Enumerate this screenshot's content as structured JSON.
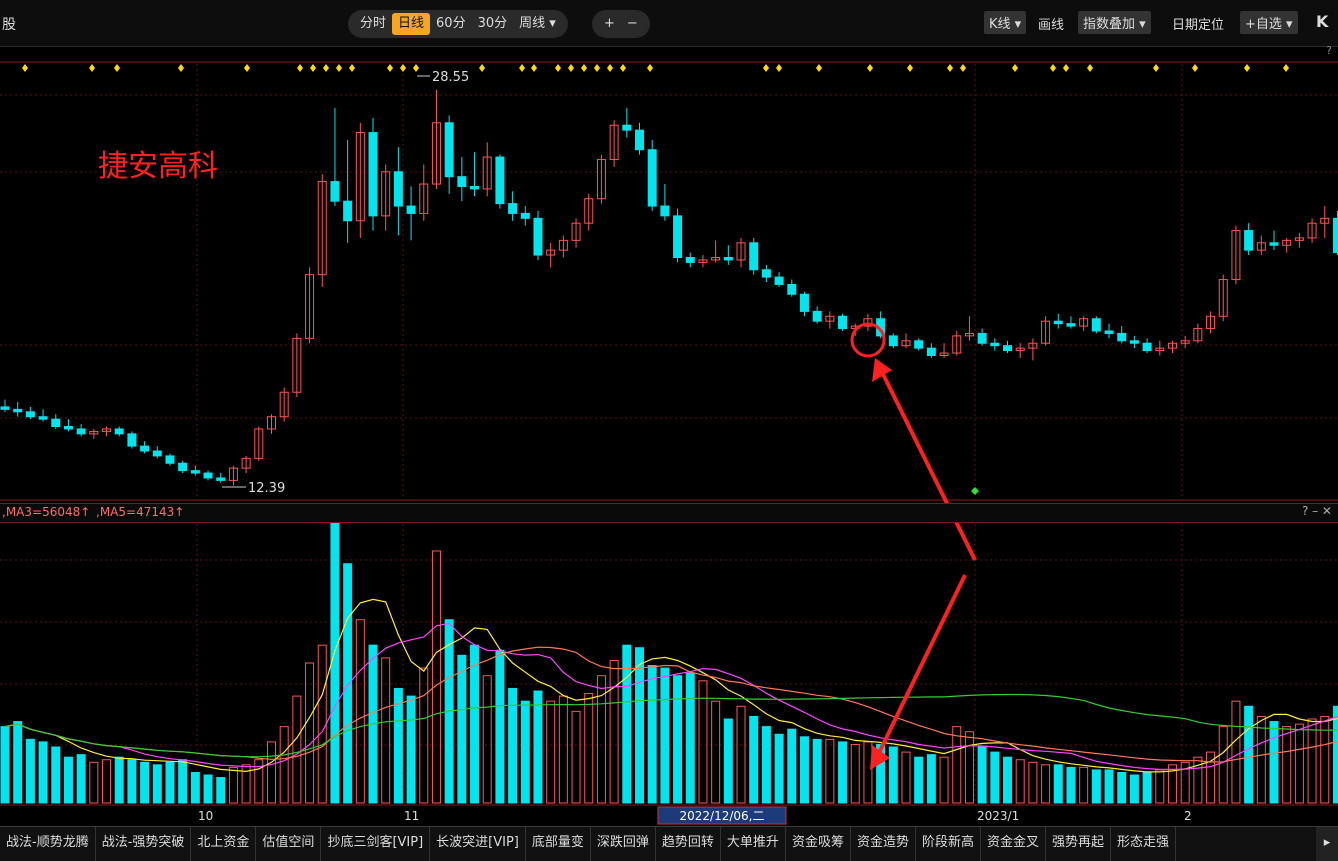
{
  "toolbar": {
    "left_fragment": "股",
    "periods": [
      "分时",
      "日线",
      "60分",
      "30分",
      "周线 ▾"
    ],
    "active_period": "日线",
    "zoom_in": "+",
    "zoom_out": "−",
    "right_items": [
      "K线 ▾",
      "画线",
      "指数叠加 ▾",
      "日期定位",
      "+自选 ▾",
      "K"
    ]
  },
  "help_mark": "?",
  "stock_name": "捷安高科",
  "price_high_label": "28.55",
  "price_low_label": "12.39",
  "volume_header": {
    "ma3": ",MA3=56048↑",
    "ma5": ",MA5=47143↑",
    "controls": "? – ✕"
  },
  "x_ticks": [
    "10",
    "11",
    "2023/1",
    "2"
  ],
  "date_cursor": "2022/12/06,二",
  "bottom_tabs": [
    "战法-顺势龙腾",
    "战法-强势突破",
    "北上资金",
    "估值空间",
    "抄底三剑客[VIP]",
    "长波突进[VIP]",
    "底部量变",
    "深跌回弹",
    "趋势回转",
    "大单推升",
    "资金吸筹",
    "资金造势",
    "阶段新高",
    "资金金叉",
    "强势再起",
    "形态走强"
  ],
  "bottom_arrow": "▸",
  "colors": {
    "up": "#ff5555",
    "down": "#00e5ee",
    "ma_yellow": "#ffee33",
    "ma_magenta": "#ff44ff",
    "ma_red": "#ff7755",
    "ma_green": "#33cc33",
    "annotation": "#ff2020",
    "signal": "#ffdd00"
  },
  "chart_data": {
    "type": "candlestick",
    "title": "捷安高科",
    "price_range_visible": [
      12.39,
      28.55
    ],
    "candles": [
      [
        15.6,
        15.9,
        15.4,
        15.5
      ],
      [
        15.5,
        15.8,
        15.2,
        15.4
      ],
      [
        15.4,
        15.6,
        15.1,
        15.2
      ],
      [
        15.2,
        15.5,
        15.0,
        15.1
      ],
      [
        15.1,
        15.3,
        14.7,
        14.8
      ],
      [
        14.8,
        15.1,
        14.6,
        14.7
      ],
      [
        14.7,
        14.9,
        14.4,
        14.5
      ],
      [
        14.5,
        14.7,
        14.3,
        14.6
      ],
      [
        14.6,
        14.8,
        14.4,
        14.7
      ],
      [
        14.7,
        14.8,
        14.4,
        14.5
      ],
      [
        14.5,
        14.6,
        13.9,
        14.0
      ],
      [
        14.0,
        14.2,
        13.7,
        13.8
      ],
      [
        13.8,
        14.0,
        13.5,
        13.6
      ],
      [
        13.6,
        13.7,
        13.2,
        13.3
      ],
      [
        13.3,
        13.4,
        12.9,
        13.0
      ],
      [
        13.0,
        13.2,
        12.8,
        12.9
      ],
      [
        12.9,
        13.0,
        12.6,
        12.7
      ],
      [
        12.7,
        12.9,
        12.5,
        12.6
      ],
      [
        12.6,
        13.2,
        12.39,
        13.1
      ],
      [
        13.1,
        13.6,
        12.9,
        13.5
      ],
      [
        13.5,
        14.8,
        13.4,
        14.7
      ],
      [
        14.7,
        15.3,
        14.5,
        15.2
      ],
      [
        15.2,
        16.4,
        15.0,
        16.2
      ],
      [
        16.2,
        18.6,
        16.0,
        18.4
      ],
      [
        18.4,
        21.3,
        18.2,
        21.0
      ],
      [
        21.0,
        25.1,
        20.5,
        24.8
      ],
      [
        24.8,
        27.8,
        23.8,
        24.0
      ],
      [
        24.0,
        26.5,
        22.3,
        23.2
      ],
      [
        23.2,
        27.2,
        22.5,
        26.8
      ],
      [
        26.8,
        27.4,
        22.8,
        23.4
      ],
      [
        23.4,
        25.5,
        22.8,
        25.2
      ],
      [
        25.2,
        26.2,
        22.6,
        23.8
      ],
      [
        23.8,
        24.6,
        22.4,
        23.5
      ],
      [
        23.5,
        25.5,
        23.2,
        24.7
      ],
      [
        24.7,
        28.55,
        24.5,
        27.2
      ],
      [
        27.2,
        27.5,
        24.3,
        25.0
      ],
      [
        25.0,
        25.8,
        24.0,
        24.6
      ],
      [
        24.6,
        26.0,
        24.2,
        24.5
      ],
      [
        24.5,
        26.4,
        24.2,
        25.8
      ],
      [
        25.8,
        25.9,
        23.7,
        23.9
      ],
      [
        23.9,
        24.4,
        23.2,
        23.5
      ],
      [
        23.5,
        23.8,
        23.0,
        23.3
      ],
      [
        23.3,
        23.6,
        21.6,
        21.8
      ],
      [
        21.8,
        22.3,
        21.3,
        22.0
      ],
      [
        22.0,
        22.6,
        21.7,
        22.4
      ],
      [
        22.4,
        23.3,
        22.1,
        23.1
      ],
      [
        23.1,
        24.3,
        22.8,
        24.1
      ],
      [
        24.1,
        25.9,
        23.9,
        25.7
      ],
      [
        25.7,
        27.3,
        25.4,
        27.1
      ],
      [
        27.1,
        27.8,
        26.6,
        26.9
      ],
      [
        26.9,
        27.2,
        25.9,
        26.1
      ],
      [
        26.1,
        26.5,
        23.6,
        23.8
      ],
      [
        23.8,
        24.7,
        23.2,
        23.4
      ],
      [
        23.4,
        23.7,
        21.5,
        21.7
      ],
      [
        21.7,
        21.9,
        21.3,
        21.5
      ],
      [
        21.5,
        21.8,
        21.3,
        21.6
      ],
      [
        21.6,
        22.4,
        21.5,
        21.7
      ],
      [
        21.7,
        22.2,
        21.4,
        21.6
      ],
      [
        21.6,
        22.5,
        21.3,
        22.3
      ],
      [
        22.3,
        22.5,
        21.0,
        21.2
      ],
      [
        21.2,
        21.4,
        20.7,
        20.9
      ],
      [
        20.9,
        21.1,
        20.5,
        20.6
      ],
      [
        20.6,
        20.8,
        20.1,
        20.2
      ],
      [
        20.2,
        20.3,
        19.3,
        19.5
      ],
      [
        19.5,
        19.7,
        19.0,
        19.1
      ],
      [
        19.1,
        19.5,
        18.8,
        19.3
      ],
      [
        19.3,
        19.4,
        18.7,
        18.8
      ],
      [
        18.8,
        19.0,
        18.5,
        18.9
      ],
      [
        18.9,
        19.4,
        18.7,
        19.2
      ],
      [
        19.2,
        19.5,
        18.4,
        18.5
      ],
      [
        18.5,
        18.6,
        18.0,
        18.1
      ],
      [
        18.1,
        18.6,
        18.0,
        18.3
      ],
      [
        18.3,
        18.4,
        17.9,
        18.0
      ],
      [
        18.0,
        18.2,
        17.6,
        17.7
      ],
      [
        17.7,
        18.2,
        17.6,
        17.8
      ],
      [
        17.8,
        18.7,
        17.7,
        18.5
      ],
      [
        18.5,
        19.3,
        18.3,
        18.6
      ],
      [
        18.6,
        18.8,
        18.1,
        18.2
      ],
      [
        18.2,
        18.4,
        17.9,
        18.1
      ],
      [
        18.1,
        18.3,
        17.8,
        17.9
      ],
      [
        17.9,
        18.2,
        17.6,
        18.0
      ],
      [
        18.0,
        18.4,
        17.5,
        18.2
      ],
      [
        18.2,
        19.3,
        18.1,
        19.1
      ],
      [
        19.1,
        19.4,
        18.8,
        19.0
      ],
      [
        19.0,
        19.3,
        18.8,
        18.9
      ],
      [
        18.9,
        19.3,
        18.7,
        19.2
      ],
      [
        19.2,
        19.3,
        18.6,
        18.7
      ],
      [
        18.7,
        19.0,
        18.4,
        18.6
      ],
      [
        18.6,
        18.9,
        18.2,
        18.3
      ],
      [
        18.3,
        18.5,
        18.0,
        18.2
      ],
      [
        18.2,
        18.4,
        17.8,
        17.9
      ],
      [
        17.9,
        18.3,
        17.7,
        18.0
      ],
      [
        18.0,
        18.3,
        17.8,
        18.2
      ],
      [
        18.2,
        18.5,
        18.0,
        18.3
      ],
      [
        18.3,
        19.0,
        18.2,
        18.8
      ],
      [
        18.8,
        19.5,
        18.6,
        19.3
      ],
      [
        19.3,
        21.0,
        19.1,
        20.8
      ],
      [
        20.8,
        23.0,
        20.6,
        22.8
      ],
      [
        22.8,
        23.1,
        21.8,
        22.0
      ],
      [
        22.0,
        22.6,
        21.8,
        22.3
      ],
      [
        22.3,
        22.8,
        22.0,
        22.2
      ],
      [
        22.2,
        22.5,
        21.9,
        22.4
      ],
      [
        22.4,
        22.7,
        22.1,
        22.5
      ],
      [
        22.5,
        23.3,
        22.3,
        23.1
      ],
      [
        23.1,
        23.8,
        22.5,
        23.3
      ],
      [
        23.3,
        23.6,
        21.8,
        21.9
      ]
    ],
    "volume": {
      "values": [
        30,
        32,
        25,
        24,
        22,
        18,
        19,
        16,
        17,
        18,
        17,
        16,
        15,
        16,
        17,
        12,
        11,
        10,
        14,
        15,
        17,
        24,
        30,
        42,
        55,
        62,
        110,
        94,
        72,
        62,
        57,
        45,
        42,
        53,
        99,
        72,
        58,
        62,
        50,
        60,
        45,
        40,
        44,
        40,
        42,
        36,
        43,
        50,
        56,
        62,
        61,
        54,
        53,
        50,
        51,
        48,
        40,
        33,
        38,
        34,
        30,
        27,
        29,
        26,
        25,
        25,
        24,
        23,
        24,
        23,
        22,
        20,
        18,
        19,
        18,
        30,
        28,
        22,
        20,
        18,
        17,
        16,
        15,
        15,
        14,
        14,
        13,
        13,
        12,
        11,
        12,
        13,
        15,
        16,
        18,
        20,
        30,
        40,
        38,
        34,
        32,
        30,
        31,
        33,
        34,
        38
      ],
      "ma3": 56048,
      "ma5": 47143
    },
    "x_ticks": [
      "10",
      "11",
      "2023/1",
      "2"
    ]
  }
}
